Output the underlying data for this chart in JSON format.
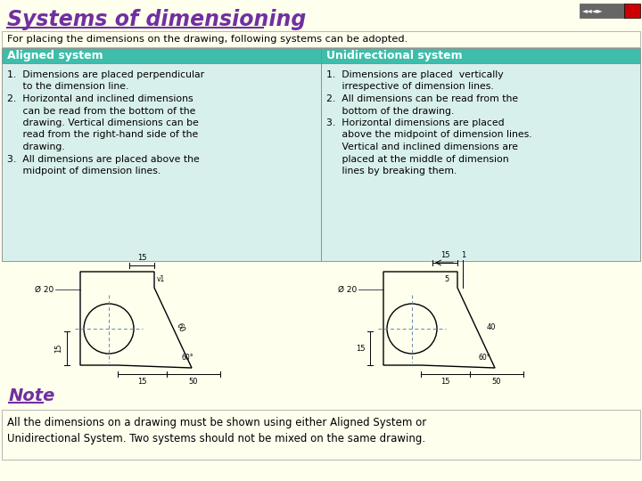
{
  "title": "Systems of dimensioning",
  "title_color": "#7030A0",
  "subtitle": "For placing the dimensions on the drawing, following systems can be adopted.",
  "subtitle_bg": "#FFFFEE",
  "header_left": "Aligned system",
  "header_right": "Unidirectional system",
  "header_bg": "#3DBDAA",
  "header_text_color": "#FFFFFF",
  "table_bg": "#D8F0EC",
  "note_text": "Note",
  "note_color": "#7030A0",
  "footer_text": "All the dimensions on a drawing must be shown using either Aligned System or Unidirectional System. Two systems should not be mixed on the same drawing.",
  "footer_bg": "#FFFFEE",
  "bg_color": "#FFFFEE"
}
